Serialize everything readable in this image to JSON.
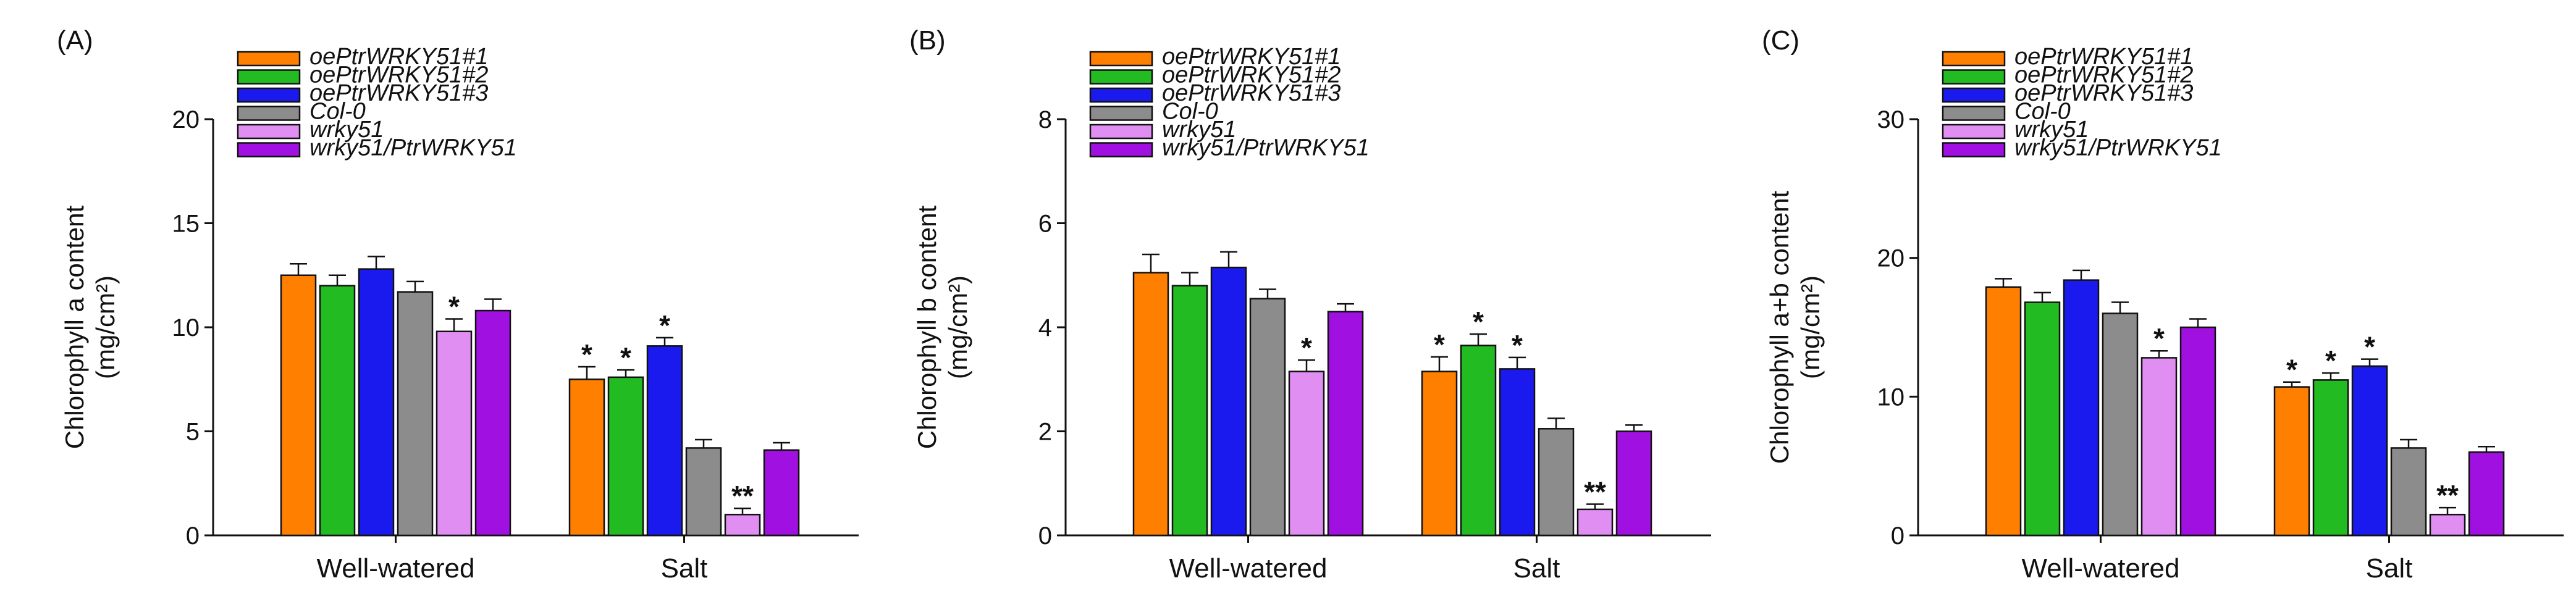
{
  "chart_data": [
    {
      "type": "bar",
      "panel": "(A)",
      "ylabel": "Chlorophyll a content",
      "yunit": "(mg/cm²)",
      "ylim": [
        0,
        20
      ],
      "yticks": [
        0,
        5,
        10,
        15,
        20
      ],
      "categories": [
        "Well-watered",
        "Salt"
      ],
      "series": [
        {
          "name": "oePtrWRKY51#1",
          "values": [
            12.5,
            7.5
          ],
          "errors": [
            0.55,
            0.6
          ],
          "sig": [
            "",
            "*"
          ]
        },
        {
          "name": "oePtrWRKY51#2",
          "values": [
            12.0,
            7.6
          ],
          "errors": [
            0.5,
            0.35
          ],
          "sig": [
            "",
            "*"
          ]
        },
        {
          "name": "oePtrWRKY51#3",
          "values": [
            12.8,
            9.1
          ],
          "errors": [
            0.6,
            0.4
          ],
          "sig": [
            "",
            "*"
          ]
        },
        {
          "name": "Col-0",
          "values": [
            11.7,
            4.2
          ],
          "errors": [
            0.5,
            0.4
          ],
          "sig": [
            "",
            ""
          ]
        },
        {
          "name": "wrky51",
          "values": [
            9.8,
            1.0
          ],
          "errors": [
            0.6,
            0.3
          ],
          "sig": [
            "*",
            "**"
          ]
        },
        {
          "name": "wrky51/PtrWRKY51",
          "values": [
            10.8,
            4.1
          ],
          "errors": [
            0.55,
            0.35
          ],
          "sig": [
            "",
            ""
          ]
        }
      ]
    },
    {
      "type": "bar",
      "panel": "(B)",
      "ylabel": "Chlorophyll b content",
      "yunit": "(mg/cm²)",
      "ylim": [
        0,
        8
      ],
      "yticks": [
        0,
        2,
        4,
        6,
        8
      ],
      "categories": [
        "Well-watered",
        "Salt"
      ],
      "series": [
        {
          "name": "oePtrWRKY51#1",
          "values": [
            5.05,
            3.15
          ],
          "errors": [
            0.35,
            0.28
          ],
          "sig": [
            "",
            "*"
          ]
        },
        {
          "name": "oePtrWRKY51#2",
          "values": [
            4.8,
            3.65
          ],
          "errors": [
            0.25,
            0.22
          ],
          "sig": [
            "",
            "*"
          ]
        },
        {
          "name": "oePtrWRKY51#3",
          "values": [
            5.15,
            3.2
          ],
          "errors": [
            0.3,
            0.22
          ],
          "sig": [
            "",
            "*"
          ]
        },
        {
          "name": "Col-0",
          "values": [
            4.55,
            2.05
          ],
          "errors": [
            0.18,
            0.2
          ],
          "sig": [
            "",
            ""
          ]
        },
        {
          "name": "wrky51",
          "values": [
            3.15,
            0.5
          ],
          "errors": [
            0.22,
            0.1
          ],
          "sig": [
            "*",
            "**"
          ]
        },
        {
          "name": "wrky51/PtrWRKY51",
          "values": [
            4.3,
            2.0
          ],
          "errors": [
            0.15,
            0.12
          ],
          "sig": [
            "",
            ""
          ]
        }
      ]
    },
    {
      "type": "bar",
      "panel": "(C)",
      "ylabel": "Chlorophyll a+b content",
      "yunit": "(mg/cm²)",
      "ylim": [
        0,
        30
      ],
      "yticks": [
        0,
        10,
        20,
        30
      ],
      "categories": [
        "Well-watered",
        "Salt"
      ],
      "series": [
        {
          "name": "oePtrWRKY51#1",
          "values": [
            17.9,
            10.7
          ],
          "errors": [
            0.6,
            0.35
          ],
          "sig": [
            "",
            "*"
          ]
        },
        {
          "name": "oePtrWRKY51#2",
          "values": [
            16.8,
            11.2
          ],
          "errors": [
            0.7,
            0.5
          ],
          "sig": [
            "",
            "*"
          ]
        },
        {
          "name": "oePtrWRKY51#3",
          "values": [
            18.4,
            12.2
          ],
          "errors": [
            0.7,
            0.5
          ],
          "sig": [
            "",
            "*"
          ]
        },
        {
          "name": "Col-0",
          "values": [
            16.0,
            6.3
          ],
          "errors": [
            0.8,
            0.6
          ],
          "sig": [
            "",
            ""
          ]
        },
        {
          "name": "wrky51",
          "values": [
            12.8,
            1.5
          ],
          "errors": [
            0.5,
            0.5
          ],
          "sig": [
            "*",
            "**"
          ]
        },
        {
          "name": "wrky51/PtrWRKY51",
          "values": [
            15.0,
            6.0
          ],
          "errors": [
            0.6,
            0.4
          ],
          "sig": [
            "",
            ""
          ]
        }
      ]
    }
  ],
  "colors": [
    "#ff7f00",
    "#22bb22",
    "#1a1aee",
    "#8c8c8c",
    "#e08ef2",
    "#a010e0"
  ]
}
